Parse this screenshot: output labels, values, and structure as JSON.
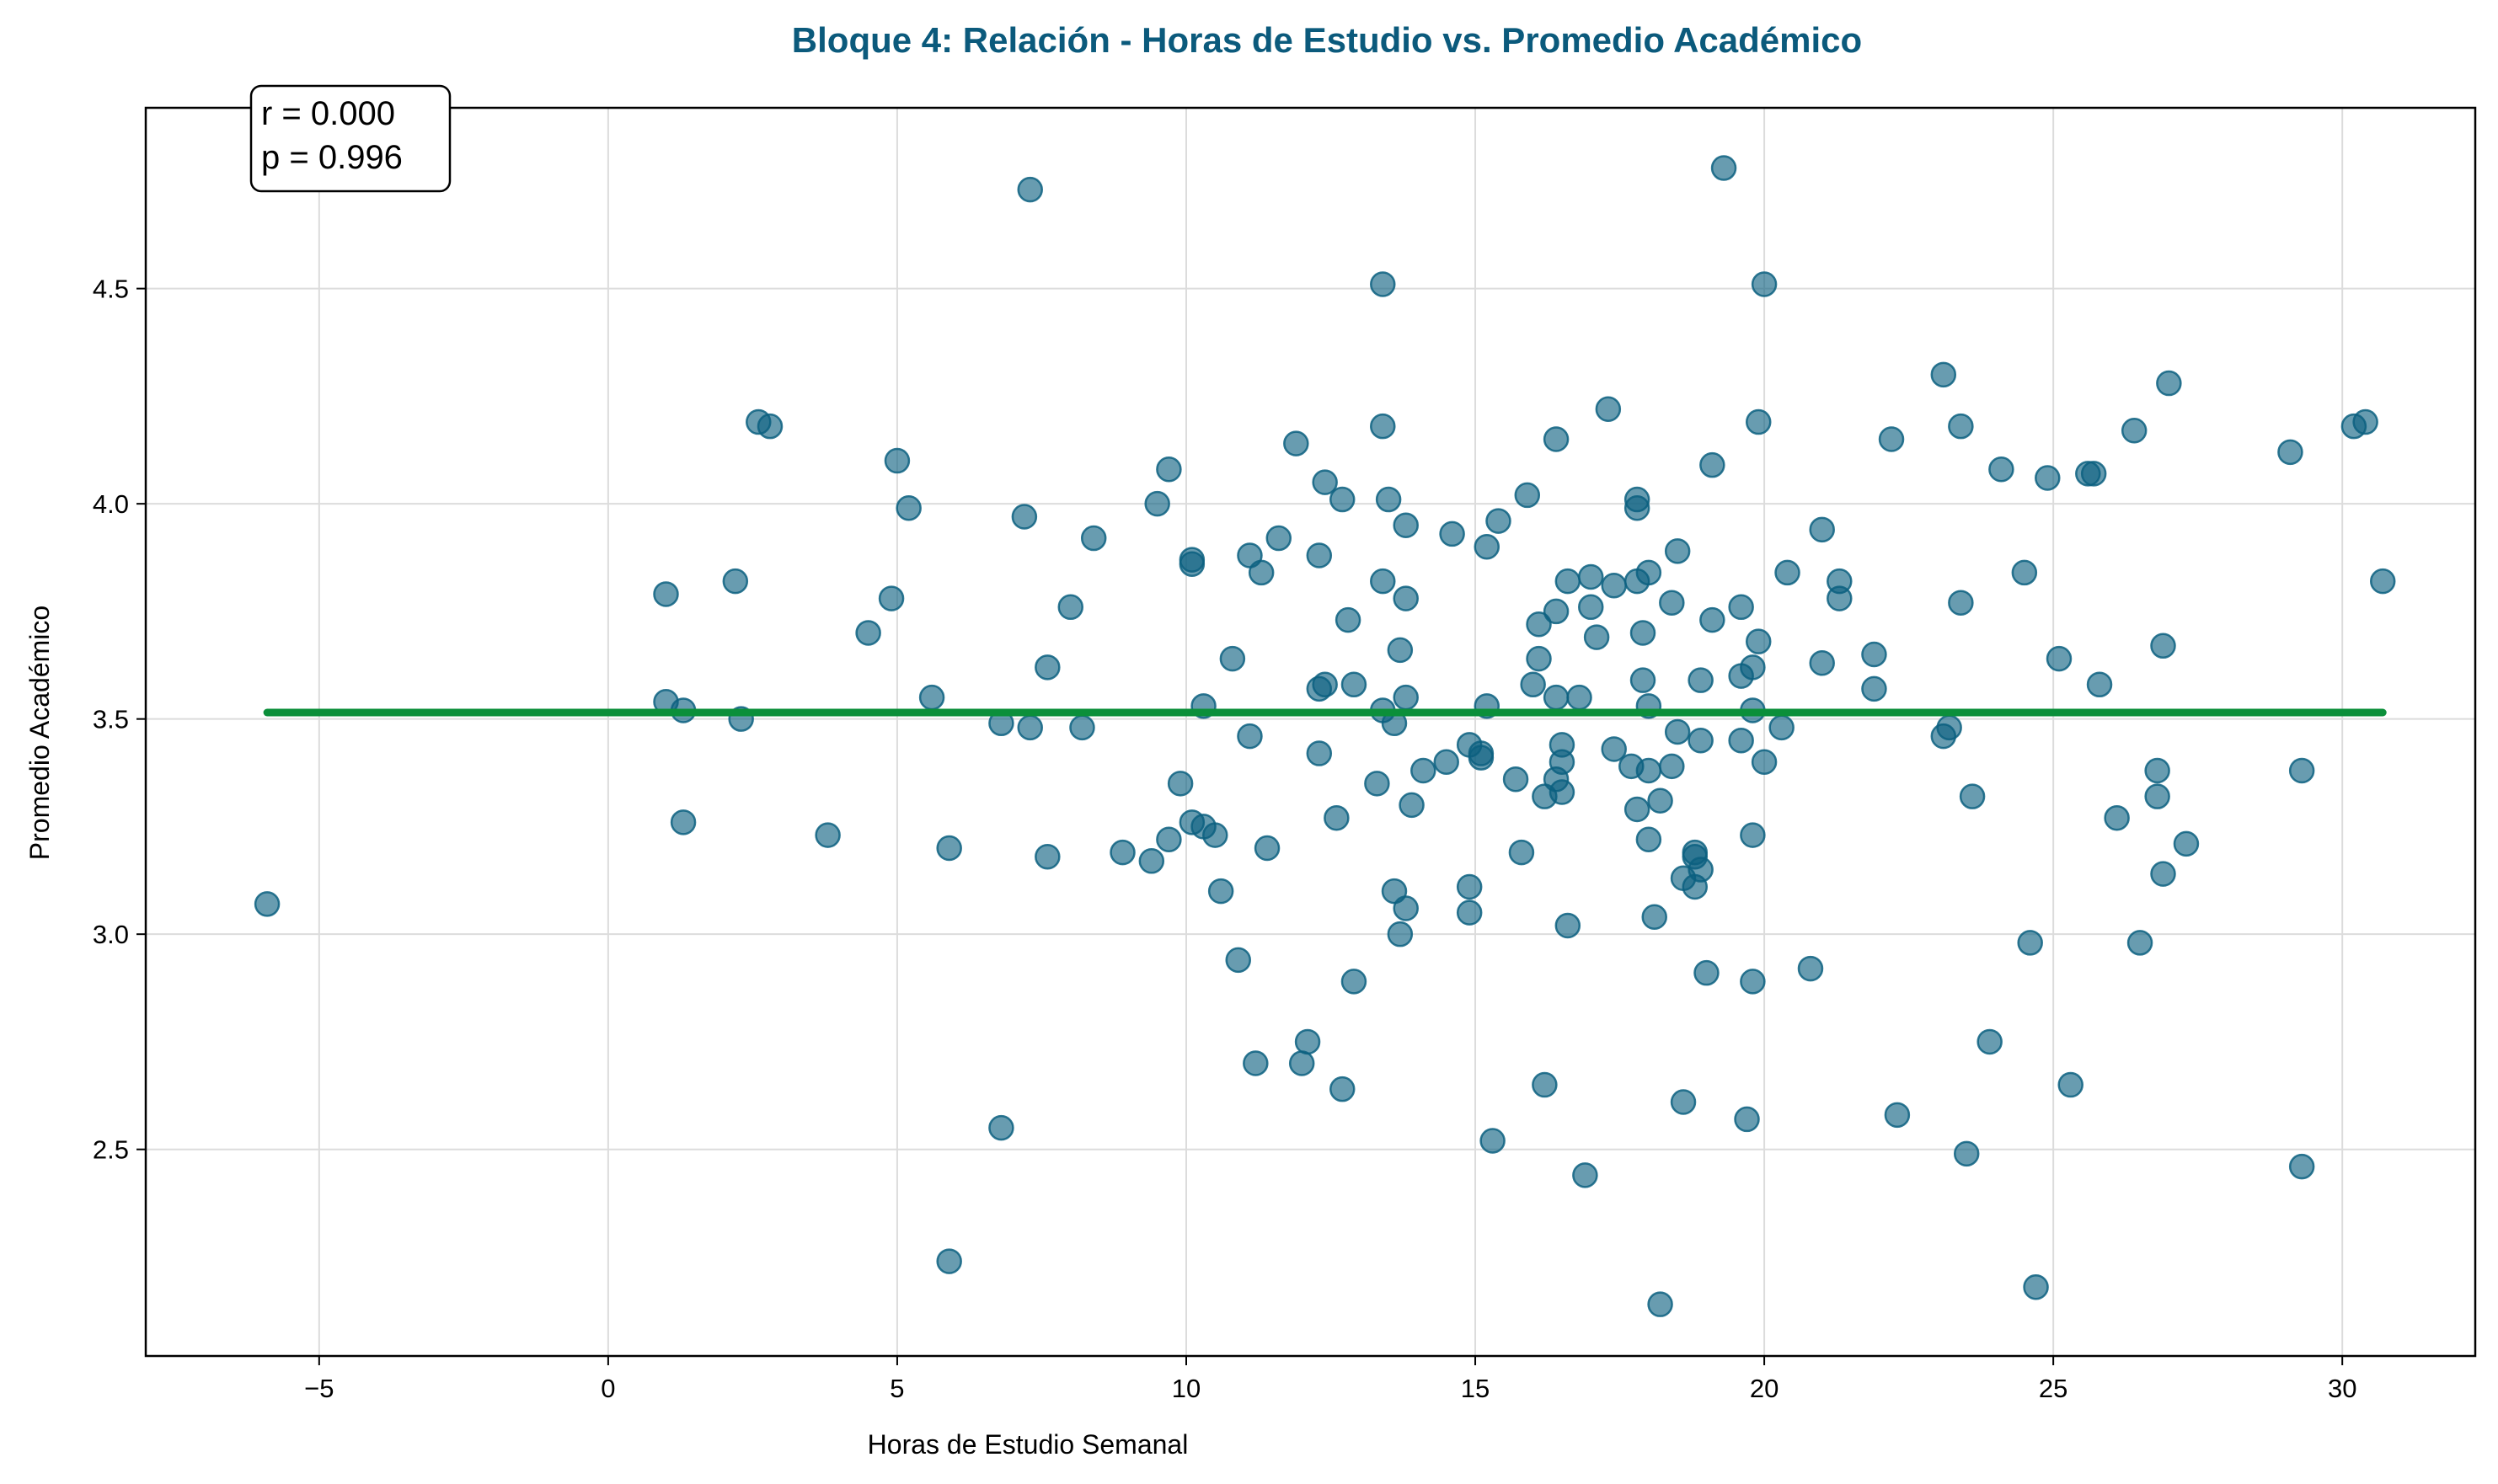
{
  "chart_data": {
    "type": "scatter",
    "title": "Bloque 4: Relación - Horas de Estudio vs. Promedio Académico",
    "xlabel": "Horas de Estudio Semanal",
    "ylabel": "Promedio Académico",
    "xlim": [
      -8.0,
      32.3
    ],
    "ylim": [
      2.02,
      4.92
    ],
    "xticks": [
      -5,
      0,
      5,
      10,
      15,
      20,
      25,
      30
    ],
    "xtick_labels": [
      "−5",
      "0",
      "5",
      "10",
      "15",
      "20",
      "25",
      "30"
    ],
    "yticks": [
      2.5,
      3.0,
      3.5,
      4.0,
      4.5
    ],
    "ytick_labels": [
      "2.5",
      "3.0",
      "3.5",
      "4.0",
      "4.5"
    ],
    "grid": true,
    "colors": {
      "points": "#0c6080",
      "trend": "#0b8f3a",
      "title": "#0b5a7c"
    },
    "stats": {
      "r_text": "r = 0.000",
      "p_text": "p = 0.996",
      "placement": "top-left"
    },
    "trend_line": {
      "x": [
        -5.9,
        30.7
      ],
      "y": [
        3.515,
        3.515
      ]
    },
    "points": [
      [
        -5.9,
        3.07
      ],
      [
        1.0,
        3.79
      ],
      [
        1.0,
        3.54
      ],
      [
        1.3,
        3.52
      ],
      [
        1.3,
        3.26
      ],
      [
        2.2,
        3.82
      ],
      [
        2.3,
        3.5
      ],
      [
        2.6,
        4.19
      ],
      [
        2.8,
        4.18
      ],
      [
        3.8,
        3.23
      ],
      [
        4.5,
        3.7
      ],
      [
        4.9,
        3.78
      ],
      [
        5.0,
        4.1
      ],
      [
        5.2,
        3.99
      ],
      [
        5.6,
        3.55
      ],
      [
        5.9,
        3.2
      ],
      [
        5.9,
        2.24
      ],
      [
        6.8,
        3.49
      ],
      [
        6.8,
        2.55
      ],
      [
        7.2,
        3.97
      ],
      [
        7.3,
        3.48
      ],
      [
        7.3,
        4.73
      ],
      [
        7.6,
        3.62
      ],
      [
        7.6,
        3.18
      ],
      [
        8.0,
        3.76
      ],
      [
        8.2,
        3.48
      ],
      [
        8.4,
        3.92
      ],
      [
        8.9,
        3.19
      ],
      [
        9.4,
        3.17
      ],
      [
        9.5,
        4.0
      ],
      [
        9.7,
        3.22
      ],
      [
        9.7,
        4.08
      ],
      [
        9.9,
        3.35
      ],
      [
        10.1,
        3.87
      ],
      [
        10.1,
        3.86
      ],
      [
        10.1,
        3.26
      ],
      [
        10.3,
        3.25
      ],
      [
        10.3,
        3.53
      ],
      [
        10.5,
        3.23
      ],
      [
        10.6,
        3.1
      ],
      [
        10.8,
        3.64
      ],
      [
        10.9,
        2.94
      ],
      [
        11.1,
        3.88
      ],
      [
        11.1,
        3.46
      ],
      [
        11.2,
        2.7
      ],
      [
        11.3,
        3.84
      ],
      [
        11.4,
        3.2
      ],
      [
        11.6,
        3.92
      ],
      [
        11.9,
        4.14
      ],
      [
        12.0,
        2.7
      ],
      [
        12.1,
        2.75
      ],
      [
        12.3,
        3.57
      ],
      [
        12.3,
        3.88
      ],
      [
        12.3,
        3.42
      ],
      [
        12.4,
        3.58
      ],
      [
        12.4,
        4.05
      ],
      [
        12.6,
        3.27
      ],
      [
        12.7,
        4.01
      ],
      [
        12.7,
        2.64
      ],
      [
        12.8,
        3.73
      ],
      [
        12.9,
        3.58
      ],
      [
        12.9,
        2.89
      ],
      [
        13.3,
        3.35
      ],
      [
        13.4,
        3.82
      ],
      [
        13.4,
        3.52
      ],
      [
        13.4,
        4.51
      ],
      [
        13.4,
        4.18
      ],
      [
        13.5,
        4.01
      ],
      [
        13.6,
        3.49
      ],
      [
        13.6,
        3.1
      ],
      [
        13.7,
        3.66
      ],
      [
        13.7,
        3.0
      ],
      [
        13.8,
        3.95
      ],
      [
        13.8,
        3.78
      ],
      [
        13.8,
        3.55
      ],
      [
        13.8,
        3.06
      ],
      [
        13.9,
        3.3
      ],
      [
        14.1,
        3.38
      ],
      [
        14.5,
        3.4
      ],
      [
        14.6,
        3.93
      ],
      [
        14.9,
        3.44
      ],
      [
        14.9,
        3.11
      ],
      [
        14.9,
        3.05
      ],
      [
        15.1,
        3.42
      ],
      [
        15.1,
        3.41
      ],
      [
        15.2,
        3.9
      ],
      [
        15.2,
        3.53
      ],
      [
        15.3,
        2.52
      ],
      [
        15.4,
        3.96
      ],
      [
        15.7,
        3.36
      ],
      [
        15.8,
        3.19
      ],
      [
        15.9,
        4.02
      ],
      [
        16.0,
        3.58
      ],
      [
        16.1,
        3.72
      ],
      [
        16.1,
        3.64
      ],
      [
        16.2,
        3.32
      ],
      [
        16.2,
        2.65
      ],
      [
        16.4,
        4.15
      ],
      [
        16.4,
        3.75
      ],
      [
        16.4,
        3.55
      ],
      [
        16.4,
        3.36
      ],
      [
        16.5,
        3.44
      ],
      [
        16.5,
        3.4
      ],
      [
        16.5,
        3.33
      ],
      [
        16.6,
        3.82
      ],
      [
        16.6,
        3.02
      ],
      [
        16.8,
        3.55
      ],
      [
        16.9,
        2.44
      ],
      [
        17.0,
        3.83
      ],
      [
        17.0,
        3.76
      ],
      [
        17.1,
        3.69
      ],
      [
        17.3,
        4.22
      ],
      [
        17.4,
        3.81
      ],
      [
        17.4,
        3.43
      ],
      [
        17.7,
        3.39
      ],
      [
        17.8,
        4.01
      ],
      [
        17.8,
        3.99
      ],
      [
        17.8,
        3.82
      ],
      [
        17.8,
        3.29
      ],
      [
        17.9,
        3.7
      ],
      [
        17.9,
        3.59
      ],
      [
        18.0,
        3.84
      ],
      [
        18.0,
        3.53
      ],
      [
        18.0,
        3.38
      ],
      [
        18.0,
        3.22
      ],
      [
        18.1,
        3.04
      ],
      [
        18.2,
        3.31
      ],
      [
        18.2,
        2.14
      ],
      [
        18.4,
        3.77
      ],
      [
        18.4,
        3.39
      ],
      [
        18.5,
        3.89
      ],
      [
        18.5,
        3.47
      ],
      [
        18.6,
        3.13
      ],
      [
        18.6,
        2.61
      ],
      [
        18.8,
        3.19
      ],
      [
        18.8,
        3.18
      ],
      [
        18.8,
        3.11
      ],
      [
        18.9,
        3.59
      ],
      [
        18.9,
        3.45
      ],
      [
        18.9,
        3.15
      ],
      [
        19.0,
        2.91
      ],
      [
        19.1,
        4.09
      ],
      [
        19.1,
        3.73
      ],
      [
        19.3,
        4.78
      ],
      [
        19.6,
        3.76
      ],
      [
        19.6,
        3.6
      ],
      [
        19.6,
        3.45
      ],
      [
        19.7,
        2.57
      ],
      [
        19.8,
        3.62
      ],
      [
        19.8,
        3.52
      ],
      [
        19.8,
        3.23
      ],
      [
        19.8,
        2.89
      ],
      [
        19.9,
        4.19
      ],
      [
        19.9,
        3.68
      ],
      [
        20.0,
        4.51
      ],
      [
        20.0,
        3.4
      ],
      [
        20.3,
        3.48
      ],
      [
        20.4,
        3.84
      ],
      [
        20.8,
        2.92
      ],
      [
        21.0,
        3.94
      ],
      [
        21.0,
        3.63
      ],
      [
        21.3,
        3.82
      ],
      [
        21.3,
        3.78
      ],
      [
        21.9,
        3.65
      ],
      [
        21.9,
        3.57
      ],
      [
        22.2,
        4.15
      ],
      [
        22.3,
        2.58
      ],
      [
        23.1,
        4.3
      ],
      [
        23.1,
        3.46
      ],
      [
        23.2,
        3.48
      ],
      [
        23.4,
        4.18
      ],
      [
        23.4,
        3.77
      ],
      [
        23.5,
        2.49
      ],
      [
        23.6,
        3.32
      ],
      [
        23.9,
        2.75
      ],
      [
        24.1,
        4.08
      ],
      [
        24.5,
        3.84
      ],
      [
        24.6,
        2.98
      ],
      [
        24.7,
        2.18
      ],
      [
        24.9,
        4.06
      ],
      [
        25.1,
        3.64
      ],
      [
        25.3,
        2.65
      ],
      [
        25.6,
        4.07
      ],
      [
        25.7,
        4.07
      ],
      [
        25.8,
        3.58
      ],
      [
        26.1,
        3.27
      ],
      [
        26.4,
        4.17
      ],
      [
        26.5,
        2.98
      ],
      [
        26.8,
        3.38
      ],
      [
        26.8,
        3.32
      ],
      [
        26.9,
        3.67
      ],
      [
        26.9,
        3.14
      ],
      [
        27.0,
        4.28
      ],
      [
        27.3,
        3.21
      ],
      [
        29.1,
        4.12
      ],
      [
        29.3,
        3.38
      ],
      [
        29.3,
        2.46
      ],
      [
        30.2,
        4.18
      ],
      [
        30.4,
        4.19
      ],
      [
        30.7,
        3.82
      ]
    ]
  }
}
